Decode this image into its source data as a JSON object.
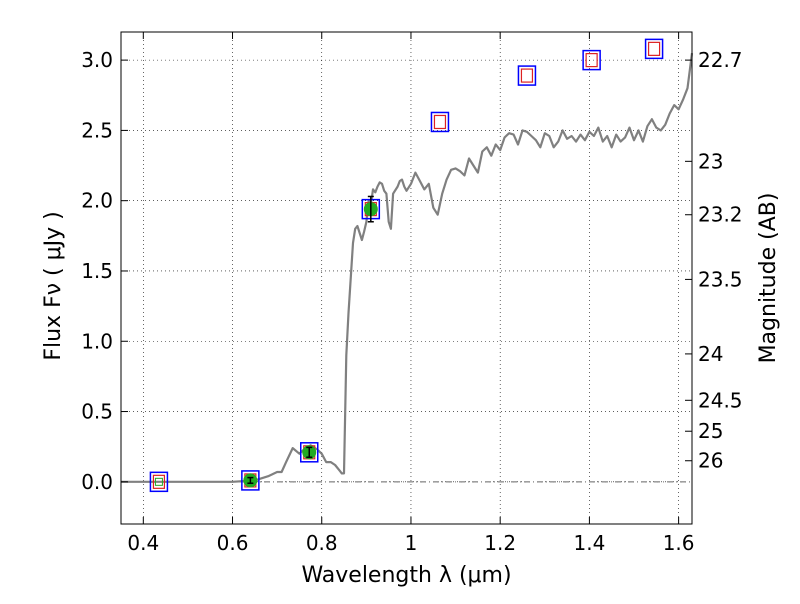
{
  "chart_data": {
    "type": "line",
    "xlabel": "Wavelength  λ (μm)",
    "ylabel": "Flux  Fν  ( μJy )",
    "y2label": "Magnitude (AB)",
    "xlim": [
      0.35,
      1.63
    ],
    "ylim": [
      -0.3,
      3.2
    ],
    "grid": true,
    "x_ticks": [
      0.4,
      0.6,
      0.8,
      1.0,
      1.2,
      1.4,
      1.6
    ],
    "x_tick_labels": [
      "0.4",
      "0.6",
      "0.8",
      "1",
      "1.2",
      "1.4",
      "1.6"
    ],
    "y_ticks": [
      0.0,
      0.5,
      1.0,
      1.5,
      2.0,
      2.5,
      3.0
    ],
    "y_tick_labels": [
      "0.0",
      "0.5",
      "1.0",
      "1.5",
      "2.0",
      "2.5",
      "3.0"
    ],
    "y2_ticks": [
      {
        "label": "22.7",
        "flux": 3.0
      },
      {
        "label": "23",
        "flux": 2.28
      },
      {
        "label": "23.2",
        "flux": 1.9
      },
      {
        "label": "23.5",
        "flux": 1.44
      },
      {
        "label": "24",
        "flux": 0.91
      },
      {
        "label": "24.5",
        "flux": 0.58
      },
      {
        "label": "25",
        "flux": 0.36
      },
      {
        "label": "26",
        "flux": 0.15
      }
    ],
    "colors": {
      "model": "#808080",
      "box": "#0000ff",
      "model_mag": "#dd2222",
      "detection": "#22aa22",
      "zero_line": "#666666"
    },
    "series": [
      {
        "kind": "model_spectrum",
        "x": [
          0.35,
          0.4,
          0.45,
          0.5,
          0.55,
          0.6,
          0.65,
          0.68,
          0.7,
          0.71,
          0.72,
          0.735,
          0.75,
          0.76,
          0.775,
          0.79,
          0.8,
          0.81,
          0.82,
          0.83,
          0.84,
          0.845,
          0.85,
          0.855,
          0.86,
          0.87,
          0.875,
          0.88,
          0.89,
          0.895,
          0.9,
          0.905,
          0.91,
          0.915,
          0.92,
          0.925,
          0.93,
          0.935,
          0.94,
          0.945,
          0.95,
          0.955,
          0.96,
          0.97,
          0.975,
          0.98,
          0.985,
          0.99,
          1.0,
          1.01,
          1.02,
          1.03,
          1.04,
          1.05,
          1.06,
          1.07,
          1.08,
          1.09,
          1.1,
          1.11,
          1.12,
          1.13,
          1.14,
          1.15,
          1.16,
          1.17,
          1.18,
          1.19,
          1.2,
          1.21,
          1.22,
          1.23,
          1.24,
          1.25,
          1.26,
          1.27,
          1.28,
          1.29,
          1.3,
          1.31,
          1.32,
          1.33,
          1.34,
          1.35,
          1.36,
          1.37,
          1.38,
          1.39,
          1.4,
          1.41,
          1.42,
          1.43,
          1.44,
          1.45,
          1.46,
          1.47,
          1.48,
          1.49,
          1.5,
          1.51,
          1.52,
          1.53,
          1.54,
          1.55,
          1.56,
          1.57,
          1.58,
          1.59,
          1.6,
          1.61,
          1.62,
          1.63
        ],
        "y": [
          0.0,
          0.0,
          0.0,
          0.0,
          0.0,
          0.0,
          0.01,
          0.04,
          0.07,
          0.07,
          0.14,
          0.24,
          0.2,
          0.23,
          0.26,
          0.23,
          0.2,
          0.14,
          0.14,
          0.12,
          0.08,
          0.06,
          0.06,
          0.9,
          1.2,
          1.7,
          1.8,
          1.82,
          1.72,
          1.78,
          1.85,
          2.0,
          1.97,
          2.08,
          2.06,
          2.1,
          2.13,
          2.12,
          2.07,
          2.05,
          1.85,
          1.8,
          2.05,
          2.1,
          2.14,
          2.15,
          2.1,
          2.07,
          2.12,
          2.2,
          2.14,
          2.08,
          2.12,
          1.95,
          1.9,
          2.05,
          2.15,
          2.22,
          2.23,
          2.21,
          2.18,
          2.3,
          2.25,
          2.2,
          2.35,
          2.38,
          2.32,
          2.4,
          2.36,
          2.45,
          2.48,
          2.47,
          2.4,
          2.5,
          2.49,
          2.46,
          2.43,
          2.38,
          2.48,
          2.46,
          2.38,
          2.42,
          2.5,
          2.44,
          2.46,
          2.42,
          2.47,
          2.43,
          2.49,
          2.46,
          2.52,
          2.42,
          2.46,
          2.38,
          2.47,
          2.42,
          2.45,
          2.52,
          2.43,
          2.5,
          2.42,
          2.53,
          2.58,
          2.52,
          2.5,
          2.54,
          2.62,
          2.68,
          2.65,
          2.72,
          2.8,
          3.05
        ]
      },
      {
        "kind": "model_photometry",
        "x": [
          0.435,
          0.64,
          0.772,
          0.91,
          1.065,
          1.26,
          1.405,
          1.545
        ],
        "y": [
          0.0,
          0.01,
          0.21,
          1.94,
          2.56,
          2.89,
          3.0,
          3.08
        ]
      },
      {
        "kind": "observed_detections",
        "x": [
          0.64,
          0.772,
          0.91
        ],
        "y": [
          0.01,
          0.21,
          1.94
        ],
        "yerr": [
          0.02,
          0.035,
          0.09
        ]
      },
      {
        "kind": "observed_nondetection",
        "x": [
          0.435
        ],
        "y": [
          0.0
        ]
      }
    ]
  }
}
